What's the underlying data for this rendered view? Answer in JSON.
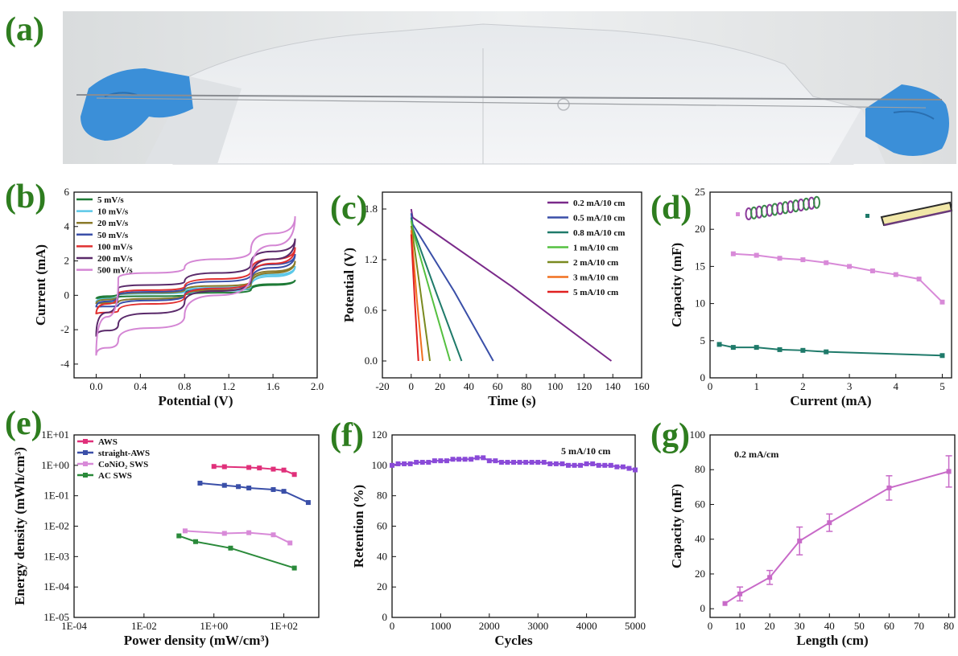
{
  "panel_labels": [
    "(a)",
    "(b)",
    "(c)",
    "(d)",
    "(e)",
    "(f)",
    "(g)"
  ],
  "chart_data": [
    {
      "id": "b",
      "type": "line",
      "cyclic": true,
      "xlabel": "Potential (V)",
      "ylabel": "Current (mA)",
      "xlim": [
        -0.2,
        2.0
      ],
      "ylim": [
        -4.8,
        6
      ],
      "xticks": [
        0.0,
        0.4,
        0.8,
        1.2,
        1.6,
        2.0
      ],
      "xtick_labels": [
        "0.0",
        "0.4",
        "0.8",
        "1.2",
        "1.6",
        "2.0"
      ],
      "yticks": [
        -4,
        -2,
        0,
        2,
        4,
        6
      ],
      "ytick_labels": [
        "-4",
        "-2",
        "0",
        "2",
        "4",
        "6"
      ],
      "series": [
        {
          "name": "5 mV/s",
          "color": "#1e7a36",
          "x": [
            0,
            0.2,
            0.8,
            1.4,
            1.8,
            1.4,
            0.8,
            0.2,
            0
          ],
          "y": [
            -0.2,
            0.1,
            0.2,
            0.4,
            0.9,
            0.3,
            0.0,
            -0.1,
            -0.2
          ]
        },
        {
          "name": "10 mV/s",
          "color": "#5bc8e8",
          "x": [
            0,
            0.2,
            0.8,
            1.4,
            1.8,
            1.4,
            0.8,
            0.2,
            0
          ],
          "y": [
            -0.4,
            0.0,
            0.2,
            0.7,
            1.7,
            0.5,
            0.0,
            -0.4,
            -0.4
          ]
        },
        {
          "name": "20 mV/s",
          "color": "#8a7a2a",
          "x": [
            0,
            0.2,
            0.8,
            1.4,
            1.8,
            1.4,
            0.8,
            0.2,
            0
          ],
          "y": [
            -0.5,
            0.0,
            0.3,
            0.8,
            2.0,
            0.6,
            0.0,
            -0.4,
            -0.5
          ]
        },
        {
          "name": "50 mV/s",
          "color": "#3a4fa8",
          "x": [
            0,
            0.2,
            0.8,
            1.4,
            1.8,
            1.4,
            0.8,
            0.2,
            0
          ],
          "y": [
            -0.7,
            0.0,
            0.4,
            1.2,
            2.4,
            0.8,
            0.0,
            -0.6,
            -0.7
          ]
        },
        {
          "name": "100 mV/s",
          "color": "#e03030",
          "x": [
            0,
            0.2,
            0.8,
            1.4,
            1.8,
            1.4,
            0.8,
            0.2,
            0
          ],
          "y": [
            -1.1,
            0.1,
            0.5,
            1.4,
            2.8,
            0.9,
            -0.1,
            -0.9,
            -1.1
          ]
        },
        {
          "name": "200 mV/s",
          "color": "#5a2a6a",
          "x": [
            0,
            0.2,
            0.8,
            1.4,
            1.8,
            1.4,
            0.8,
            0.2,
            0
          ],
          "y": [
            -2.4,
            0.4,
            0.8,
            1.8,
            3.3,
            0.9,
            -0.4,
            -1.7,
            -2.4
          ]
        },
        {
          "name": "500 mV/s",
          "color": "#d486d4",
          "x": [
            0,
            0.2,
            0.8,
            1.4,
            1.8,
            1.4,
            0.8,
            0.2,
            0
          ],
          "y": [
            -3.5,
            1.0,
            1.6,
            2.6,
            4.6,
            1.2,
            -1.2,
            -2.6,
            -3.5
          ]
        }
      ],
      "legend": "top-left"
    },
    {
      "id": "c",
      "type": "line",
      "xlabel": "Time (s)",
      "ylabel": "Potential (V)",
      "xlim": [
        -20,
        160
      ],
      "ylim": [
        -0.2,
        2.0
      ],
      "xticks": [
        -20,
        0,
        20,
        40,
        60,
        80,
        100,
        120,
        140,
        160
      ],
      "xtick_labels": [
        "-20",
        "0",
        "20",
        "40",
        "60",
        "80",
        "100",
        "120",
        "140",
        "160"
      ],
      "yticks": [
        0.0,
        0.6,
        1.2,
        1.8
      ],
      "ytick_labels": [
        "0.0",
        "0.6",
        "1.2",
        "1.8"
      ],
      "series": [
        {
          "name": "0.2 mA/10 cm",
          "color": "#7a2a8a",
          "x": [
            0,
            1,
            70,
            139
          ],
          "y": [
            1.8,
            1.7,
            0.88,
            0
          ]
        },
        {
          "name": "0.5 mA/10 cm",
          "color": "#3a4fa8",
          "x": [
            0,
            1,
            30,
            57
          ],
          "y": [
            1.75,
            1.62,
            0.82,
            0
          ]
        },
        {
          "name": "0.8 mA/10 cm",
          "color": "#1f7a6a",
          "x": [
            0,
            1,
            18,
            35
          ],
          "y": [
            1.7,
            1.58,
            0.78,
            0
          ]
        },
        {
          "name": "1  mA/10 cm",
          "color": "#55c040",
          "x": [
            0,
            1,
            14,
            27
          ],
          "y": [
            1.66,
            1.55,
            0.77,
            0
          ]
        },
        {
          "name": "2  mA/10 cm",
          "color": "#7a8a20",
          "x": [
            0,
            1,
            7,
            13
          ],
          "y": [
            1.6,
            1.5,
            0.75,
            0
          ]
        },
        {
          "name": "3  mA/10 cm",
          "color": "#f07020",
          "x": [
            0,
            0.5,
            4,
            8
          ],
          "y": [
            1.55,
            1.45,
            0.72,
            0
          ]
        },
        {
          "name": "5  mA/10 cm",
          "color": "#e02020",
          "x": [
            0,
            0.3,
            2.5,
            5
          ],
          "y": [
            1.5,
            1.4,
            0.7,
            0
          ]
        }
      ],
      "legend": "top-right"
    },
    {
      "id": "d",
      "type": "line",
      "markers": "square",
      "xlabel": "Current (mA)",
      "ylabel": "Capacity (mF)",
      "xlim": [
        0,
        5.2
      ],
      "ylim": [
        0,
        25
      ],
      "xticks": [
        0,
        1,
        2,
        3,
        4,
        5
      ],
      "xtick_labels": [
        "0",
        "1",
        "2",
        "3",
        "4",
        "5"
      ],
      "yticks": [
        0,
        5,
        10,
        15,
        20,
        25
      ],
      "ytick_labels": [
        "0",
        "5",
        "10",
        "15",
        "20",
        "25"
      ],
      "series": [
        {
          "name": "",
          "color": "#d88ad8",
          "x": [
            0.5,
            1,
            1.5,
            2,
            2.5,
            3,
            3.5,
            4,
            4.5,
            5
          ],
          "y": [
            16.7,
            16.5,
            16.1,
            15.9,
            15.5,
            15.0,
            14.4,
            13.9,
            13.3,
            10.2
          ]
        },
        {
          "name": "",
          "color": "#1f7a6a",
          "x": [
            0.2,
            0.5,
            1,
            1.5,
            2,
            2.5,
            5
          ],
          "y": [
            4.5,
            4.1,
            4.1,
            3.8,
            3.7,
            3.5,
            3.0
          ]
        }
      ],
      "legend": "top (schematic fibre icons)"
    },
    {
      "id": "e",
      "type": "line",
      "markers": "square",
      "log_x": true,
      "log_y": true,
      "xlabel": "Power density (mW/cm³)",
      "ylabel": "Energy density (mWh/cm³)",
      "xlim": [
        0.0001,
        1000
      ],
      "ylim": [
        1e-05,
        10
      ],
      "xticks": [
        0.0001,
        0.01,
        1,
        100
      ],
      "xtick_labels": [
        "1E-04",
        "1E-02",
        "1E+00",
        "1E+02"
      ],
      "yticks": [
        1e-05,
        0.0001,
        0.001,
        0.01,
        0.1,
        1,
        10
      ],
      "ytick_labels": [
        "1E-05",
        "1E-04",
        "1E-03",
        "1E-02",
        "1E-01",
        "1E+00",
        "1E+01"
      ],
      "series": [
        {
          "name": "AWS",
          "color": "#e0307a",
          "x": [
            1,
            2,
            10,
            20,
            50,
            100,
            200
          ],
          "y": [
            0.92,
            0.9,
            0.85,
            0.82,
            0.75,
            0.7,
            0.5
          ]
        },
        {
          "name": "straight-AWS",
          "color": "#3a4fa8",
          "x": [
            0.4,
            2,
            5,
            10,
            50,
            100,
            500
          ],
          "y": [
            0.26,
            0.22,
            0.2,
            0.18,
            0.16,
            0.14,
            0.06
          ]
        },
        {
          "name": "CoNiO₂ SWS",
          "color": "#d88ad8",
          "x": [
            0.15,
            2,
            10,
            50,
            150
          ],
          "y": [
            0.007,
            0.0058,
            0.0061,
            0.0052,
            0.0028
          ]
        },
        {
          "name": "AC SWS",
          "color": "#2a8a3a",
          "x": [
            0.1,
            0.3,
            3,
            200
          ],
          "y": [
            0.0048,
            0.0031,
            0.0019,
            0.00042
          ]
        }
      ],
      "legend": "top-left"
    },
    {
      "id": "f",
      "type": "line",
      "markers": "square",
      "xlabel": "Cycles",
      "ylabel": "Retention (%)",
      "xlim": [
        0,
        5000
      ],
      "ylim": [
        0,
        120
      ],
      "xticks": [
        0,
        1000,
        2000,
        3000,
        4000,
        5000
      ],
      "xtick_labels": [
        "0",
        "1000",
        "2000",
        "3000",
        "4000",
        "5000"
      ],
      "yticks": [
        0,
        20,
        40,
        60,
        80,
        100,
        120
      ],
      "ytick_labels": [
        "0",
        "20",
        "40",
        "60",
        "80",
        "100",
        "120"
      ],
      "annotation": "5  mA/10 cm",
      "series": [
        {
          "name": "",
          "color": "#8a4ad8",
          "x": [
            0,
            125,
            250,
            375,
            500,
            625,
            750,
            875,
            1000,
            1125,
            1250,
            1375,
            1500,
            1625,
            1750,
            1875,
            2000,
            2125,
            2250,
            2375,
            2500,
            2625,
            2750,
            2875,
            3000,
            3125,
            3250,
            3375,
            3500,
            3625,
            3750,
            3875,
            4000,
            4125,
            4250,
            4375,
            4500,
            4625,
            4750,
            4875,
            5000
          ],
          "y": [
            100,
            101,
            101,
            101,
            102,
            102,
            102,
            103,
            103,
            103,
            104,
            104,
            104,
            104,
            105,
            105,
            103,
            103,
            102,
            102,
            102,
            102,
            102,
            102,
            102,
            102,
            101,
            101,
            101,
            100,
            100,
            100,
            101,
            101,
            100,
            100,
            100,
            99,
            99,
            98,
            97
          ]
        }
      ]
    },
    {
      "id": "g",
      "type": "line",
      "markers": "square",
      "error_bars": true,
      "xlabel": "Length (cm)",
      "ylabel": "Capacity (mF)",
      "xlim": [
        0,
        82
      ],
      "ylim": [
        -5,
        100
      ],
      "xticks": [
        0,
        10,
        20,
        30,
        40,
        50,
        60,
        70,
        80
      ],
      "xtick_labels": [
        "0",
        "10",
        "20",
        "30",
        "40",
        "50",
        "60",
        "70",
        "80"
      ],
      "yticks": [
        0,
        20,
        40,
        60,
        80,
        100
      ],
      "ytick_labels": [
        "0",
        "20",
        "40",
        "60",
        "80",
        "100"
      ],
      "annotation": "0.2 mA/cm",
      "series": [
        {
          "name": "",
          "color": "#c86ac8",
          "x": [
            5,
            10,
            20,
            30,
            40,
            60,
            80
          ],
          "y": [
            3,
            8.5,
            18,
            39,
            49.5,
            69.5,
            79
          ],
          "err": [
            0,
            4,
            4,
            8,
            5,
            7,
            9
          ]
        }
      ]
    }
  ]
}
